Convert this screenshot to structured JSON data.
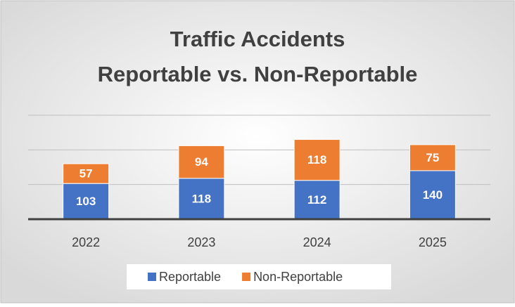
{
  "chart_data": {
    "type": "stacked_bar",
    "title": [
      "Traffic Accidents",
      "Reportable vs. Non-Reportable"
    ],
    "categories": [
      "2022",
      "2023",
      "2024",
      "2025"
    ],
    "series": [
      {
        "name": "Reportable",
        "color": "#4472c4",
        "values": [
          103,
          118,
          112,
          140
        ]
      },
      {
        "name": "Non-Reportable",
        "color": "#ed7d31",
        "values": [
          57,
          94,
          118,
          75
        ]
      }
    ],
    "ylim": [
      0,
      300
    ],
    "yticks": [
      0,
      100,
      200,
      300
    ],
    "grid": true,
    "legend": "bottom"
  }
}
